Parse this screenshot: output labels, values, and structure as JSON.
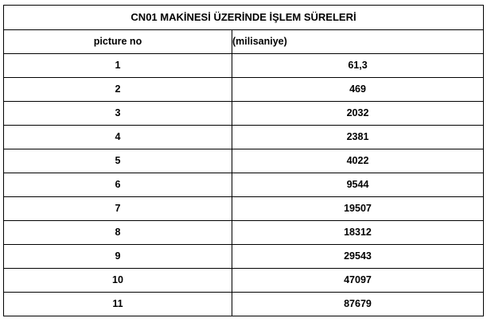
{
  "table": {
    "title": "CN01 MAKİNESİ ÜZERİNDE İŞLEM SÜRELERİ",
    "headers": {
      "no": "picture no",
      "value": "(milisaniye)"
    },
    "rows": [
      {
        "no": "1",
        "value": "61,3"
      },
      {
        "no": "2",
        "value": "469"
      },
      {
        "no": "3",
        "value": "2032"
      },
      {
        "no": "4",
        "value": "2381"
      },
      {
        "no": "5",
        "value": "4022"
      },
      {
        "no": "6",
        "value": "9544"
      },
      {
        "no": "7",
        "value": "19507"
      },
      {
        "no": "8",
        "value": "18312"
      },
      {
        "no": "9",
        "value": "29543"
      },
      {
        "no": "10",
        "value": "47097"
      },
      {
        "no": "11",
        "value": "87679"
      }
    ]
  }
}
